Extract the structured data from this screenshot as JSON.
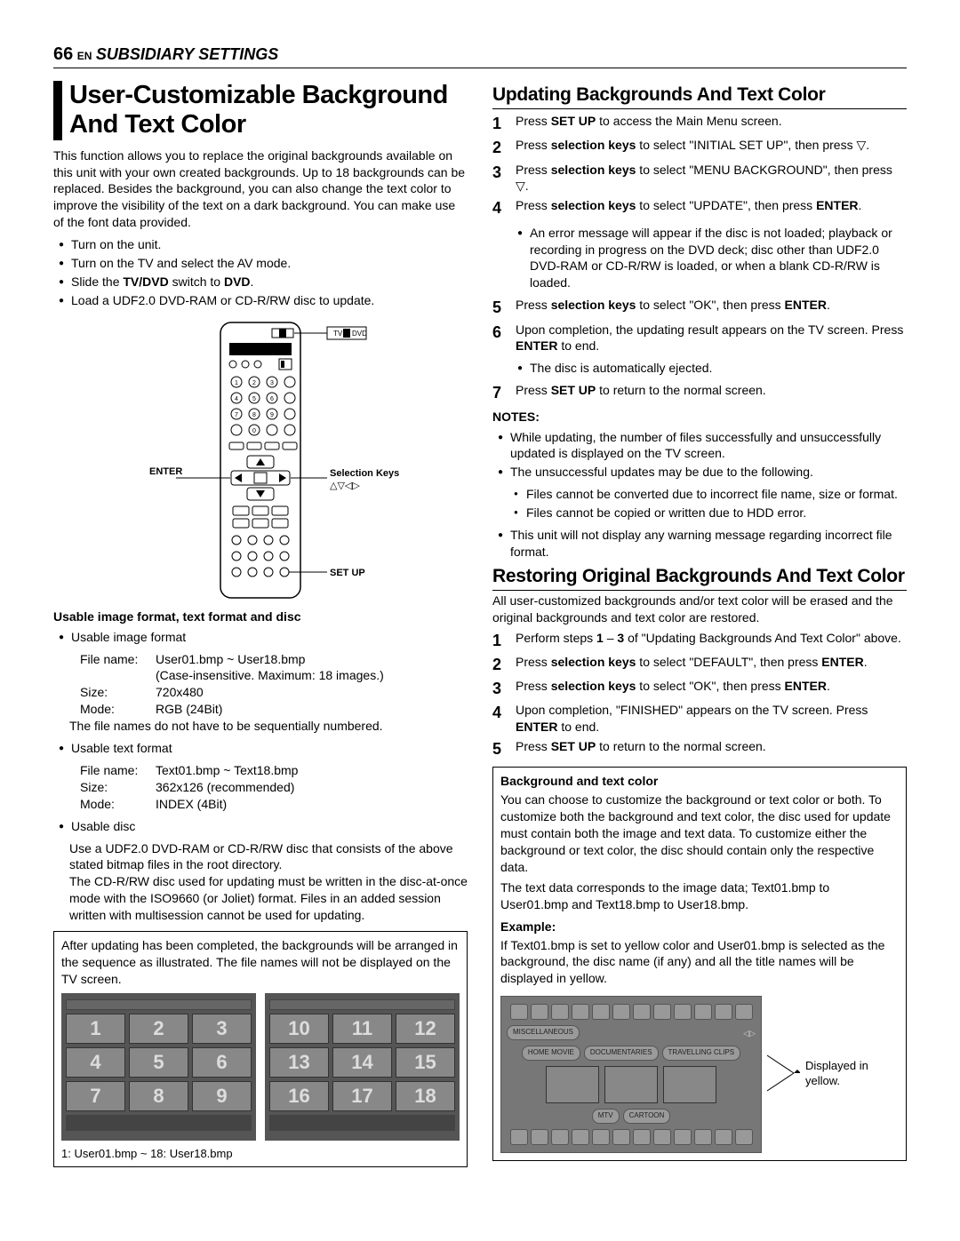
{
  "header": {
    "page_num": "66",
    "lang": "EN",
    "section": "SUBSIDIARY SETTINGS"
  },
  "left": {
    "title": "User-Customizable Background And Text Color",
    "intro": "This function allows you to replace the original backgrounds available on this unit with your own created backgrounds. Up to 18 backgrounds can be replaced. Besides the background, you can also change the text color to improve the visibility of the text on a dark background. You can make use of the font data provided.",
    "prep": [
      "Turn on the unit.",
      "Turn on the TV and select the AV mode.",
      "Slide the TV/DVD switch to DVD.",
      "Load a UDF2.0 DVD-RAM or CD-R/RW disc to update."
    ],
    "prep_bold_fragments": {
      "2": "TV/DVD",
      "2b": "DVD"
    },
    "remote_labels": {
      "enter": "ENTER",
      "selection": "Selection Keys",
      "setup": "SET UP",
      "switch_tv": "TV",
      "switch_dvd": "DVD"
    },
    "usable_head": "Usable image format, text format and disc",
    "usable_image": {
      "head": "Usable image format",
      "file": "User01.bmp ~ User18.bmp",
      "file_note": "(Case-insensitive. Maximum: 18 images.)",
      "size": "720x480",
      "mode": "RGB (24Bit)",
      "note": "The file names do not have to be sequentially numbered."
    },
    "usable_text": {
      "head": "Usable text format",
      "file": "Text01.bmp ~ Text18.bmp",
      "size": "362x126 (recommended)",
      "mode": "INDEX (4Bit)"
    },
    "usable_disc": {
      "head": "Usable disc",
      "l1": "Use a UDF2.0 DVD-RAM or CD-R/RW disc that consists of the above stated bitmap files in the root directory.",
      "l2": "The CD-R/RW disc used for updating must be written in the disc-at-once mode with the ISO9660 (or Joliet) format. Files in an added session written with multisession cannot be used for updating."
    },
    "frame": {
      "text": "After updating has been completed, the backgrounds will be arranged in the sequence as illustrated. The file names will not be displayed on the TV screen.",
      "grid_a": [
        "1",
        "2",
        "3",
        "4",
        "5",
        "6",
        "7",
        "8",
        "9"
      ],
      "grid_b": [
        "10",
        "11",
        "12",
        "13",
        "14",
        "15",
        "16",
        "17",
        "18"
      ],
      "caption": "1: User01.bmp ~ 18: User18.bmp"
    }
  },
  "right": {
    "update": {
      "title": "Updating Backgrounds And Text Color",
      "steps": [
        "Press SET UP to access the Main Menu screen.",
        "Press selection keys to select \"INITIAL SET UP\", then press ▽.",
        "Press selection keys to select \"MENU BACKGROUND\", then press ▽.",
        "Press selection keys to select \"UPDATE\", then press ENTER.",
        "Press selection keys to select \"OK\", then press ENTER.",
        "Upon completion, the updating result appears on the TV screen. Press ENTER to end.",
        "Press SET UP to return to the normal screen."
      ],
      "step4_bullet": "An error message will appear if the disc is not loaded; playback or recording in progress on the DVD deck; disc other than UDF2.0 DVD-RAM or CD-R/RW is loaded, or when a blank CD-R/RW is loaded.",
      "step6_bullet": "The disc is automatically ejected.",
      "notes_head": "NOTES:",
      "notes": [
        "While updating, the number of files successfully and unsuccessfully updated is displayed on the TV screen.",
        "The unsuccessful updates may be due to the following.",
        "This unit will not display any warning message regarding incorrect file format."
      ],
      "notes_sub": [
        "Files cannot be converted due to incorrect file name, size or format.",
        "Files cannot be copied or written due to HDD error."
      ]
    },
    "restore": {
      "title": "Restoring Original Backgrounds And Text Color",
      "intro": "All user-customized backgrounds and/or text color will be erased and the original backgrounds and text color are restored.",
      "steps": [
        "Perform steps 1 – 3 of \"Updating Backgrounds And Text Color\" above.",
        "Press selection keys to select \"DEFAULT\", then press ENTER.",
        "Press selection keys to select \"OK\", then press ENTER.",
        "Upon completion, \"FINISHED\" appears on the TV screen. Press ENTER to end.",
        "Press SET UP to return to the normal screen."
      ]
    },
    "box": {
      "head": "Background and text color",
      "p1": "You can choose to customize the background or text color or both. To customize both the background and text color, the disc used for update must contain both the image and text data. To customize either the background or text color, the disc should contain only the respective data.",
      "p2": "The text data corresponds to the image data; Text01.bmp to User01.bmp and Text18.bmp to User18.bmp.",
      "ex_head": "Example:",
      "ex_text": "If Text01.bmp is set to yellow color and User01.bmp is selected as the background, the disc name (if any) and all the title names will be displayed in yellow.",
      "callout": "Displayed in yellow.",
      "pill_a": "MISCELLANEOUS",
      "pill_b": "HOME MOVIE",
      "pill_c": "DOCUMENTARIES",
      "pill_d": "TRAVELLING CLIPS",
      "pill_e": "MTV",
      "pill_f": "CARTOON"
    }
  }
}
